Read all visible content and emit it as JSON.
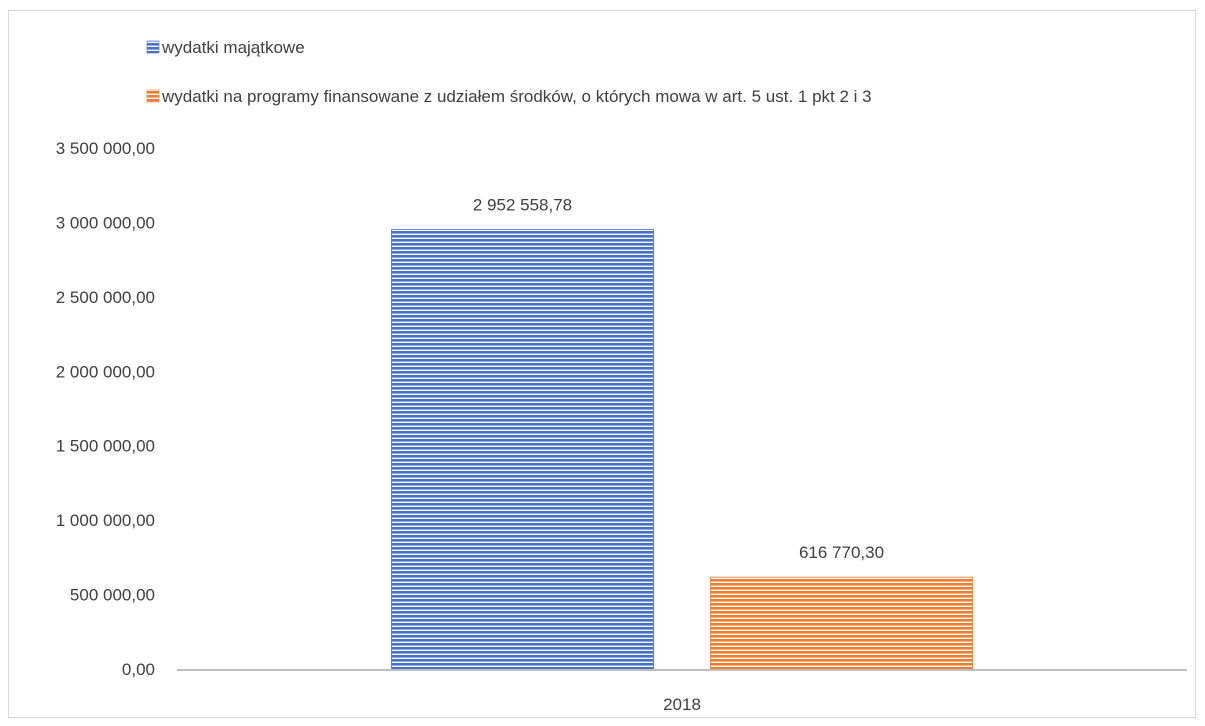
{
  "chart_data": {
    "type": "bar",
    "categories": [
      "2018"
    ],
    "series": [
      {
        "name": "wydatki majątkowe",
        "values": [
          2952558.78
        ],
        "label": "2 952 558,78",
        "color": "#4472c4"
      },
      {
        "name": "wydatki na programy finansowane z udziałem środków, o których mowa w art. 5 ust. 1 pkt 2 i 3",
        "values": [
          616770.3
        ],
        "label": "616 770,30",
        "color": "#ed7d31"
      }
    ],
    "y_ticks": [
      {
        "value": 0,
        "label": "0,00"
      },
      {
        "value": 500000,
        "label": "500 000,00"
      },
      {
        "value": 1000000,
        "label": "1 000 000,00"
      },
      {
        "value": 1500000,
        "label": "1 500 000,00"
      },
      {
        "value": 2000000,
        "label": "2 000 000,00"
      },
      {
        "value": 2500000,
        "label": "2 500 000,00"
      },
      {
        "value": 3000000,
        "label": "3 000 000,00"
      },
      {
        "value": 3500000,
        "label": "3 500 000,00"
      }
    ],
    "ylim": [
      0,
      3500000
    ],
    "legend_position": "top-left",
    "grid": false,
    "bar_pattern": "horizontal-stripes"
  }
}
